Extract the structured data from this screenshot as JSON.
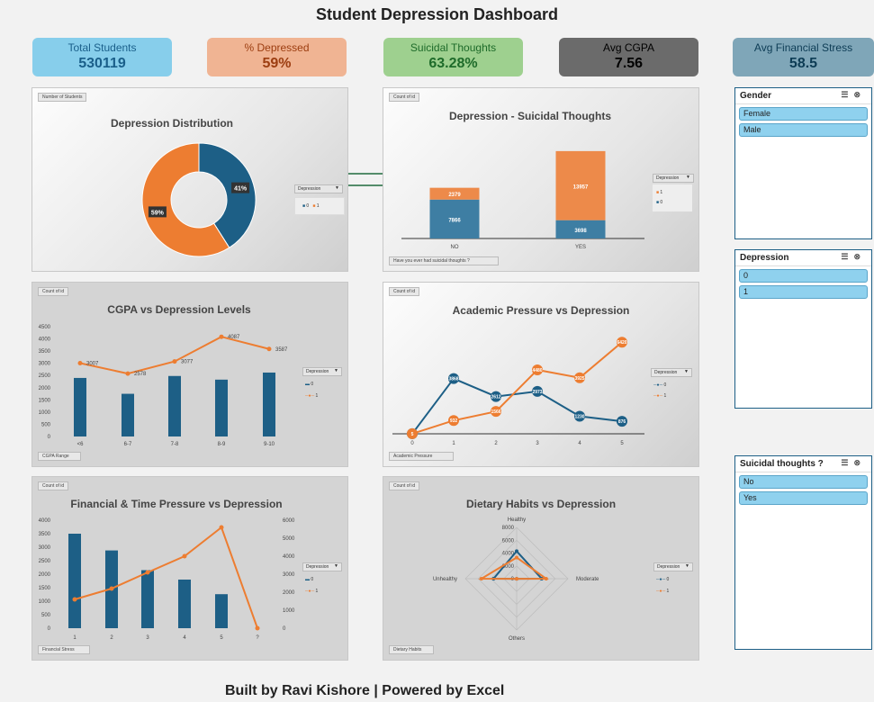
{
  "dashboard": {
    "title": "Student Depression Dashboard",
    "footer": "Built by Ravi Kishore | Powered by Excel"
  },
  "kpis": [
    {
      "label": "Total Students",
      "value": "530119",
      "bg": "#87ceeb",
      "color": "#1a5f8a"
    },
    {
      "label": "% Depressed",
      "value": "59%",
      "bg": "#f0b493",
      "color": "#9c3d10"
    },
    {
      "label": "Suicidal Thoughts",
      "value": "63.28%",
      "bg": "#9ed08f",
      "color": "#1e6b2a"
    },
    {
      "label": "Avg CGPA",
      "value": "7.56",
      "bg": "#6b6b6b",
      "color": "#000000"
    },
    {
      "label": "Avg Financial Stress",
      "value": "58.5",
      "bg": "#7fa6b8",
      "color": "#0d3c55"
    }
  ],
  "colors": {
    "series0": "#1d5f86",
    "series1": "#ed7d31"
  },
  "slicers": [
    {
      "title": "Gender",
      "items": [
        "Female",
        "Male"
      ]
    },
    {
      "title": "Depression",
      "items": [
        "0",
        "1"
      ]
    },
    {
      "title": "Suicidal thoughts ?",
      "items": [
        "No",
        "Yes"
      ]
    }
  ],
  "chart_data": [
    {
      "type": "pie",
      "title": "Depression Distribution",
      "field_tag": "Number of Students",
      "legend_title": "Depression",
      "categories": [
        "0",
        "1"
      ],
      "values": [
        41,
        59
      ],
      "labels": [
        "41%",
        "59%"
      ]
    },
    {
      "type": "bar",
      "stacked": true,
      "title": "Depression - Suicidal Thoughts",
      "field_tag": "Count of id",
      "axis_tag": "Have you ever had suicidal thoughts ?",
      "legend_title": "Depression",
      "categories": [
        "NO",
        "YES"
      ],
      "series": [
        {
          "name": "0",
          "values": [
            7866,
            3698
          ]
        },
        {
          "name": "1",
          "values": [
            2379,
            13957
          ]
        }
      ]
    },
    {
      "type": "bar",
      "combo_line": true,
      "title": "CGPA vs Depression Levels",
      "field_tag": "Count of id",
      "axis_tag": "CGPA Range",
      "legend_title": "Depression",
      "categories": [
        "<6",
        "6-7",
        "7-8",
        "8-9",
        "9-10"
      ],
      "yticks": [
        "0",
        "500",
        "1000",
        "1500",
        "2000",
        "2500",
        "3000",
        "3500",
        "4000",
        "4500"
      ],
      "ylim": [
        0,
        4500
      ],
      "series": [
        {
          "name": "0",
          "values": [
            2400,
            1750,
            2480,
            2330,
            2620
          ]
        },
        {
          "name": "1",
          "values": [
            3007,
            2578,
            3077,
            4087,
            3587
          ]
        }
      ]
    },
    {
      "type": "line",
      "title": "Academic Pressure vs Depression",
      "field_tag": "Count of id",
      "axis_tag": "Academic Pressure",
      "legend_title": "Depression",
      "categories": [
        "0",
        "1",
        "2",
        "3",
        "4",
        "5"
      ],
      "series": [
        {
          "name": "0",
          "values": [
            4,
            3868,
            2612,
            2973,
            1230,
            876
          ],
          "labels": [
            "4",
            "3868",
            "2612",
            "2973",
            "1230",
            "876"
          ]
        },
        {
          "name": "1",
          "values": [
            5,
            932,
            1566,
            4480,
            3925,
            6420
          ],
          "labels": [
            "5",
            "932",
            "1566",
            "4480",
            "3925",
            "6420"
          ]
        }
      ],
      "ylim": [
        0,
        7000
      ]
    },
    {
      "type": "bar",
      "combo_line": true,
      "title": "Financial & Time Pressure vs Depression",
      "field_tag": "Count of id",
      "axis_tag": "Financial Stress",
      "legend_title": "Depression",
      "categories": [
        "1",
        "2",
        "3",
        "4",
        "5",
        "?"
      ],
      "yticks_left": [
        "0",
        "500",
        "1000",
        "1500",
        "2000",
        "2500",
        "3000",
        "3500",
        "4000"
      ],
      "yticks_right": [
        "0",
        "1000",
        "2000",
        "3000",
        "4000",
        "5000",
        "6000"
      ],
      "ylim_left": [
        0,
        4000
      ],
      "ylim_right": [
        0,
        6000
      ],
      "series": [
        {
          "name": "0",
          "values": [
            3500,
            2880,
            2150,
            1800,
            1260,
            0
          ]
        },
        {
          "name": "1",
          "values": [
            1600,
            2200,
            3100,
            4000,
            5600,
            0
          ]
        }
      ]
    },
    {
      "type": "radar",
      "title": "Dietary Habits vs Depression",
      "field_tag": "Count of id",
      "axis_tag": "Dietary Habits",
      "legend_title": "Depression",
      "categories": [
        "Healthy",
        "Moderate",
        "Others",
        "Unhealthy"
      ],
      "ticks": [
        "0",
        "2000",
        "4000",
        "6000",
        "8000"
      ],
      "rmax": 8000,
      "series": [
        {
          "name": "0",
          "values": [
            4300,
            3900,
            20,
            3600
          ]
        },
        {
          "name": "1",
          "values": [
            3300,
            4600,
            20,
            5500
          ]
        }
      ]
    }
  ]
}
